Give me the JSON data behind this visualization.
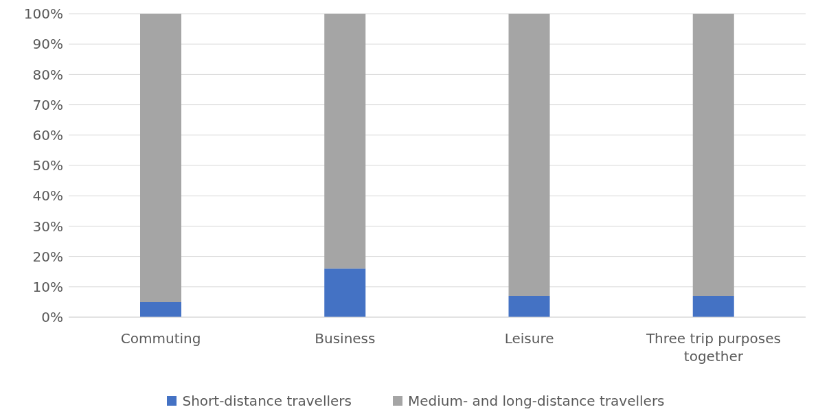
{
  "chart_data": {
    "type": "bar",
    "stacked": true,
    "categories": [
      "Commuting",
      "Business",
      "Leisure",
      "Three trip purposes together"
    ],
    "series": [
      {
        "name": "Short-distance travellers",
        "color": "#4472c4",
        "values": [
          5,
          16,
          7,
          7
        ]
      },
      {
        "name": "Medium- and long-distance travellers",
        "color": "#a5a5a5",
        "values": [
          95,
          84,
          93,
          93
        ]
      }
    ],
    "ylim": [
      0,
      100
    ],
    "yticks": [
      {
        "value": 0,
        "label": "0%"
      },
      {
        "value": 10,
        "label": "10%"
      },
      {
        "value": 20,
        "label": "20%"
      },
      {
        "value": 30,
        "label": "30%"
      },
      {
        "value": 40,
        "label": "40%"
      },
      {
        "value": 50,
        "label": "50%"
      },
      {
        "value": 60,
        "label": "60%"
      },
      {
        "value": 70,
        "label": "70%"
      },
      {
        "value": 80,
        "label": "80%"
      },
      {
        "value": 90,
        "label": "90%"
      },
      {
        "value": 100,
        "label": "100%"
      }
    ],
    "grid": "y",
    "legend": "bottom"
  }
}
